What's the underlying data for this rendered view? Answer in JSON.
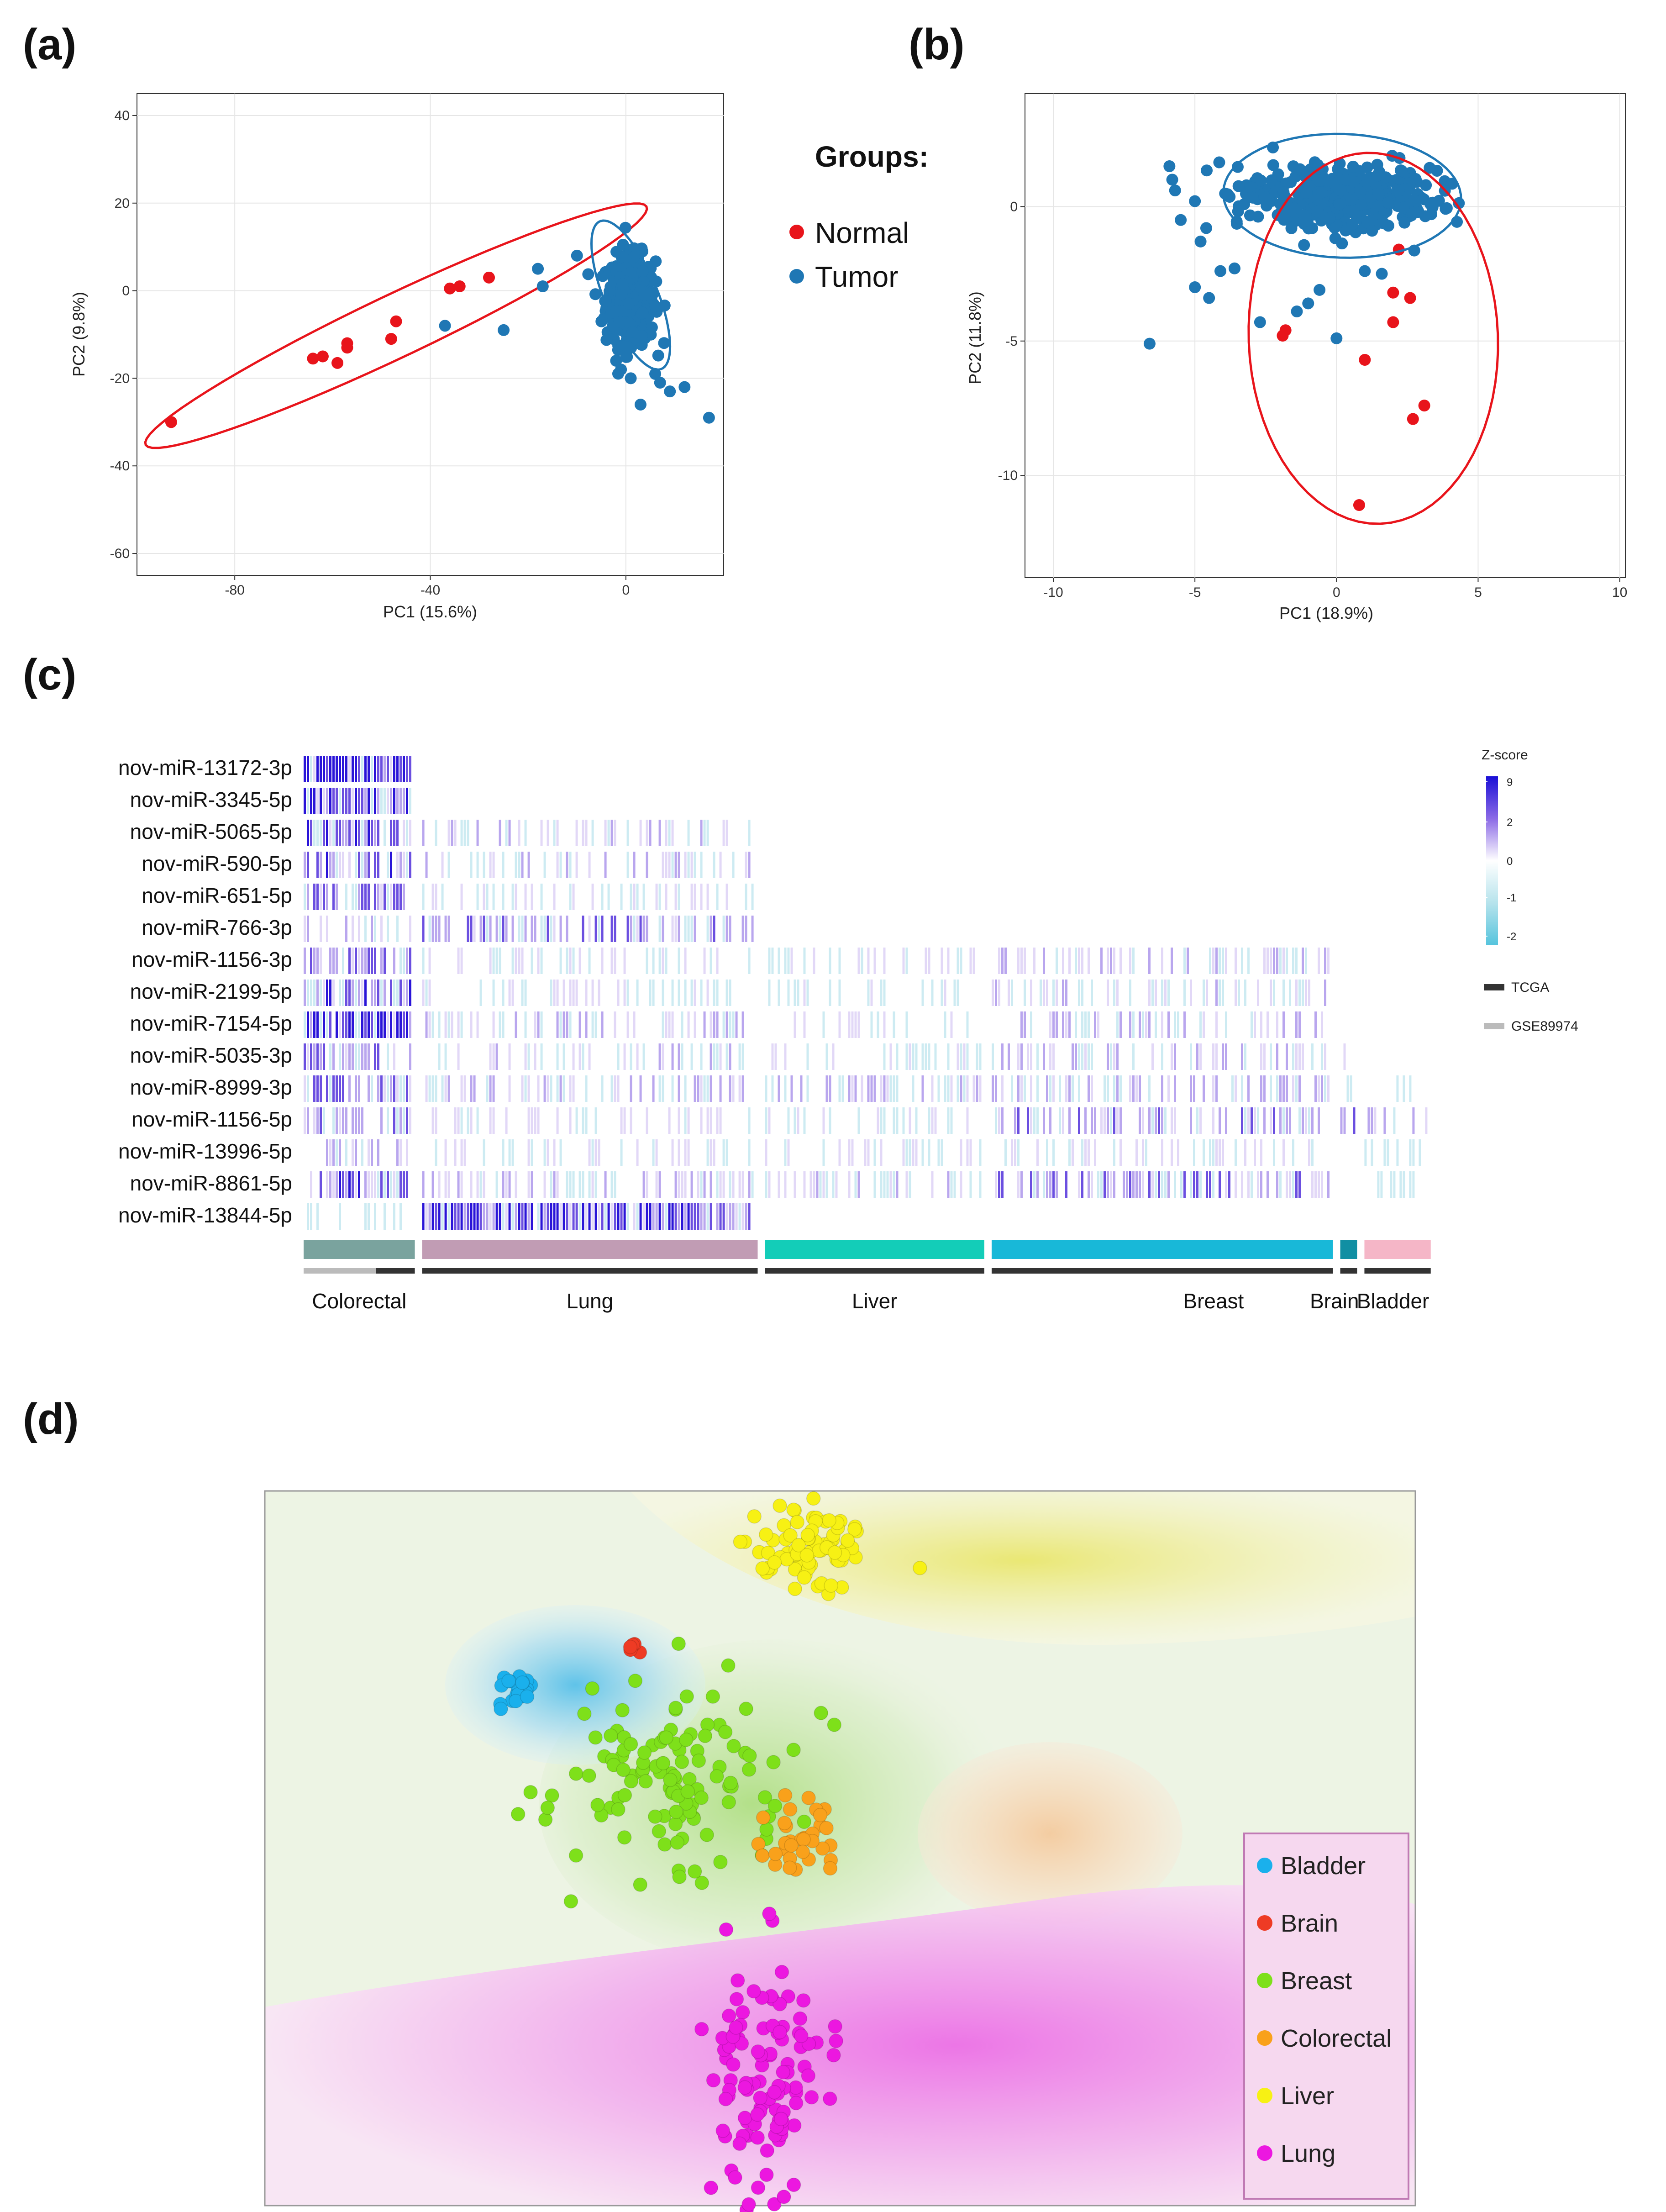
{
  "panels": {
    "a": "(a)",
    "b": "(b)",
    "c": "(c)",
    "d": "(d)"
  },
  "groups_legend": {
    "title": "Groups:",
    "items": [
      {
        "label": "Normal",
        "color": "#e8141b"
      },
      {
        "label": "Tumor",
        "color": "#1f77b4"
      }
    ]
  },
  "chart_data": [
    {
      "id": "a",
      "type": "scatter",
      "xlabel": "PC1 (15.6%)",
      "ylabel": "PC2 (9.8%)",
      "xlim": [
        -100,
        20
      ],
      "ylim": [
        -65,
        45
      ],
      "xticks": [
        -80,
        -40,
        0
      ],
      "yticks": [
        40,
        20,
        0,
        -20,
        -40,
        -60
      ],
      "series": [
        {
          "name": "Normal",
          "color": "#e8141b",
          "points": [
            [
              -93,
              -30
            ],
            [
              -64,
              -15.5
            ],
            [
              -62,
              -15
            ],
            [
              -59,
              -16.5
            ],
            [
              -57,
              -13
            ],
            [
              -57,
              -12
            ],
            [
              -48,
              -11
            ],
            [
              -47,
              -7
            ],
            [
              -36,
              0.5
            ],
            [
              -34,
              1
            ],
            [
              -28,
              3
            ]
          ]
        },
        {
          "name": "Tumor",
          "color": "#1f77b4",
          "points": [
            [
              -37,
              -8
            ],
            [
              -25,
              -9
            ],
            [
              -18,
              5
            ],
            [
              -17,
              1
            ],
            [
              -10,
              8
            ],
            [
              -5,
              -7
            ],
            [
              -2,
              -16
            ],
            [
              -1,
              -18
            ],
            [
              1,
              -20
            ],
            [
              3,
              -26
            ],
            [
              6,
              -19
            ],
            [
              7,
              -21
            ],
            [
              9,
              -23
            ],
            [
              12,
              -22
            ],
            [
              17,
              -29
            ]
          ]
        }
      ],
      "ellipses": [
        {
          "group": "Normal",
          "center": [
            -47,
            -8
          ],
          "rx": 58,
          "ry": 7,
          "angle_deg": 28,
          "color": "#e8141b"
        },
        {
          "group": "Tumor",
          "center": [
            1,
            -1
          ],
          "rx": 18,
          "ry": 5.5,
          "angle_deg": -70,
          "color": "#1f77b4"
        }
      ],
      "tumor_cluster": {
        "center": [
          1,
          -2
        ],
        "spread_x": 5,
        "spread_y": 10,
        "count": 380
      }
    },
    {
      "id": "b",
      "type": "scatter",
      "xlabel": "PC1 (18.9%)",
      "ylabel": "PC2 (11.8%)",
      "xlim": [
        -11,
        10.2
      ],
      "ylim": [
        -13.8,
        4.2
      ],
      "xticks": [
        -10,
        -5,
        0,
        5,
        10
      ],
      "yticks": [
        0,
        -5,
        -10
      ],
      "series": [
        {
          "name": "Normal",
          "color": "#e8141b",
          "points": [
            [
              2.2,
              -1.6
            ],
            [
              2,
              -3.2
            ],
            [
              2.6,
              -3.4
            ],
            [
              2,
              -4.3
            ],
            [
              -1.8,
              -4.6
            ],
            [
              -1.9,
              -4.8
            ],
            [
              1,
              -5.7
            ],
            [
              3.1,
              -7.4
            ],
            [
              2.7,
              -7.9
            ],
            [
              0.8,
              -11.1
            ]
          ]
        },
        {
          "name": "Tumor",
          "color": "#1f77b4",
          "points": [
            [
              -6.6,
              -5.1
            ],
            [
              -5.9,
              1.5
            ],
            [
              -5.8,
              1
            ],
            [
              -5.7,
              0.6
            ],
            [
              -5.5,
              -0.5
            ],
            [
              -5,
              0.2
            ],
            [
              -4.8,
              -1.3
            ],
            [
              -4.6,
              -0.8
            ],
            [
              -4.1,
              -2.4
            ],
            [
              -5,
              -3
            ],
            [
              -4.5,
              -3.4
            ],
            [
              -3.6,
              -2.3
            ],
            [
              -2.7,
              -4.3
            ],
            [
              -1.4,
              -3.9
            ],
            [
              -1,
              -3.6
            ],
            [
              -0.6,
              -3.1
            ],
            [
              0,
              -4.9
            ],
            [
              1,
              -2.4
            ],
            [
              1.6,
              -2.5
            ],
            [
              2.4,
              -0.6
            ],
            [
              2.8,
              0.2
            ]
          ]
        }
      ],
      "ellipses": [
        {
          "group": "Tumor",
          "center": [
            0.2,
            0.4
          ],
          "rx": 4.2,
          "ry": 2.3,
          "angle_deg": -2,
          "color": "#1f77b4"
        },
        {
          "group": "Normal",
          "center": [
            1.3,
            -4.9
          ],
          "rx": 4.4,
          "ry": 6.9,
          "angle_deg": 2,
          "color": "#e8141b"
        }
      ],
      "tumor_cluster": {
        "center": [
          0.2,
          0.3
        ],
        "spread_x": 3.3,
        "spread_y": 1.1,
        "count": 420
      }
    },
    {
      "id": "c",
      "type": "heatmap",
      "rows": [
        "nov-miR-13172-3p",
        "nov-miR-3345-5p",
        "nov-miR-5065-5p",
        "nov-miR-590-5p",
        "nov-miR-651-5p",
        "nov-miR-766-3p",
        "nov-miR-1156-3p",
        "nov-miR-2199-5p",
        "nov-miR-7154-5p",
        "nov-miR-5035-3p",
        "nov-miR-8999-3p",
        "nov-miR-1156-5p",
        "nov-miR-13996-5p",
        "nov-miR-8861-5p",
        "nov-miR-13844-5p"
      ],
      "tissues": [
        {
          "label": "Colorectal",
          "color": "#7aa39e",
          "fraction": 0.103,
          "tcga_fraction": 0.35
        },
        {
          "label": "Lung",
          "color": "#c19cb4",
          "fraction": 0.298,
          "tcga_fraction": 1.0
        },
        {
          "label": "Liver",
          "color": "#13cdb8",
          "fraction": 0.197,
          "tcga_fraction": 1.0
        },
        {
          "label": "Breast",
          "color": "#18b8d8",
          "fraction": 0.303,
          "tcga_fraction": 1.0
        },
        {
          "label": "Brain",
          "color": "#118fa3",
          "fraction": 0.021,
          "tcga_fraction": 1.0
        },
        {
          "label": "Bladder",
          "color": "#f5b6c7",
          "fraction": 0.064,
          "tcga_fraction": 1.0
        }
      ],
      "colorscale": {
        "title": "Z-score",
        "ticks": [
          "9",
          "2",
          "0",
          "-1",
          "-2"
        ]
      },
      "source_legend": [
        {
          "label": "TCGA",
          "color": "#333333"
        },
        {
          "label": "GSE89974",
          "color": "#bbbbbb"
        }
      ]
    },
    {
      "id": "d",
      "type": "scatter",
      "legend": [
        {
          "label": "Bladder",
          "color": "#1ab0ec"
        },
        {
          "label": "Brain",
          "color": "#ee3b24"
        },
        {
          "label": "Breast",
          "color": "#7ee01a"
        },
        {
          "label": "Colorectal",
          "color": "#f9a11b"
        },
        {
          "label": "Liver",
          "color": "#f7f114"
        },
        {
          "label": "Lung",
          "color": "#ec17e0"
        }
      ],
      "clusters": [
        {
          "name": "Bladder",
          "center": [
            0.22,
            0.28
          ],
          "spread": [
            0.012,
            0.012
          ],
          "count": 22
        },
        {
          "name": "Brain",
          "center": [
            0.323,
            0.225
          ],
          "spread": [
            0.006,
            0.005
          ],
          "count": 5
        },
        {
          "name": "Breast",
          "center": [
            0.355,
            0.39
          ],
          "spread": [
            0.05,
            0.06
          ],
          "count": 120
        },
        {
          "name": "Colorectal",
          "center": [
            0.46,
            0.48
          ],
          "spread": [
            0.02,
            0.028
          ],
          "count": 34
        },
        {
          "name": "Liver",
          "center": [
            0.47,
            0.08
          ],
          "spread": [
            0.03,
            0.03
          ],
          "count": 80
        },
        {
          "name": "Lung",
          "center": [
            0.44,
            0.82
          ],
          "spread": [
            0.025,
            0.085
          ],
          "count": 110
        }
      ]
    }
  ]
}
